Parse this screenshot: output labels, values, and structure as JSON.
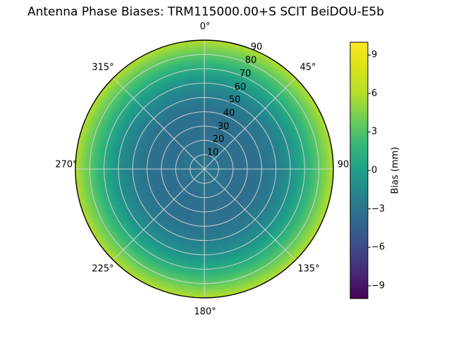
{
  "title": "Antenna Phase Biases: TRM115000.00+S  SCIT BeiDOU-E5b",
  "chart_data": {
    "type": "heatmap",
    "projection": "polar",
    "theta_zero": "top",
    "rlim": [
      0,
      90
    ],
    "azimuth_ticks_deg": [
      0,
      45,
      90,
      135,
      180,
      225,
      270,
      315
    ],
    "azimuth_tick_labels": [
      "0°",
      "45°",
      "90",
      "135°",
      "180°",
      "225°",
      "270°",
      "315°"
    ],
    "radial_ticks": [
      10,
      20,
      30,
      40,
      50,
      60,
      70,
      80,
      90
    ],
    "radial_tick_labels": [
      "10",
      "20",
      "30",
      "40",
      "50",
      "60",
      "70",
      "80",
      "90"
    ],
    "bias_profile": {
      "zenith_deg": [
        0,
        10,
        20,
        30,
        40,
        50,
        60,
        70,
        75,
        80,
        85,
        90
      ],
      "bias_mm": [
        -2.8,
        -3.1,
        -3.4,
        -3.5,
        -3.2,
        -2.4,
        -1.0,
        1.1,
        2.2,
        3.4,
        4.7,
        6.0
      ]
    },
    "colorbar": {
      "label": "Bias (mm)",
      "ticks": [
        9,
        6,
        3,
        0,
        -3,
        -6,
        -9
      ],
      "tick_labels": [
        "9",
        "6",
        "3",
        "0",
        "−3",
        "−6",
        "−9"
      ],
      "vmin": -10,
      "vmax": 10,
      "colormap": "viridis"
    },
    "colormap_stops": [
      [
        0.0,
        "#440154"
      ],
      [
        0.1,
        "#482878"
      ],
      [
        0.2,
        "#3e4a89"
      ],
      [
        0.3,
        "#31688e"
      ],
      [
        0.4,
        "#26828e"
      ],
      [
        0.5,
        "#1f9e89"
      ],
      [
        0.6,
        "#35b779"
      ],
      [
        0.7,
        "#6ece58"
      ],
      [
        0.8,
        "#b5de2b"
      ],
      [
        0.9,
        "#d8e219"
      ],
      [
        1.0,
        "#fde725"
      ]
    ],
    "colors": {
      "grid": "#d9d9d9",
      "axis_edge": "#000000",
      "background": "#ffffff"
    }
  }
}
